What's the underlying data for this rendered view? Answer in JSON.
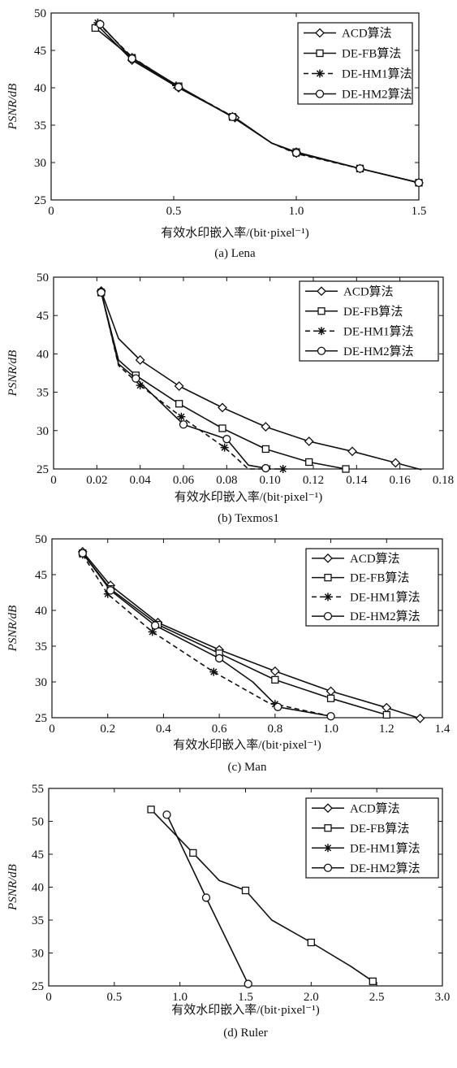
{
  "chart_data": [
    {
      "id": "a",
      "type": "line",
      "ylabel": "PSNR/dB",
      "xlabel": "有效水印嵌入率/(bit·pixel⁻¹)",
      "caption": "(a) Lena",
      "xlim": [
        0,
        1.5
      ],
      "ylim": [
        25,
        50
      ],
      "xticks": [
        "0",
        "0.5",
        "1.0",
        "1.5"
      ],
      "xtick_values": [
        0,
        0.5,
        1.0,
        1.5
      ],
      "yticks": [
        25,
        30,
        35,
        40,
        45,
        50
      ],
      "legend_position": "top-right",
      "series": [
        {
          "name": "ACD算法",
          "marker": "diamond",
          "dash": "solid",
          "x": [
            0.19,
            0.33,
            0.52,
            0.75,
            0.9,
            1.0,
            1.26,
            1.5
          ],
          "y": [
            48.3,
            43.7,
            40.0,
            36.0,
            32.6,
            31.4,
            29.2,
            27.3
          ],
          "marker_idx": [
            0,
            1,
            2,
            3,
            5,
            6,
            7
          ]
        },
        {
          "name": "DE-FB算法",
          "marker": "square",
          "dash": "solid",
          "x": [
            0.18,
            0.33,
            0.52,
            0.74,
            0.9,
            1.0,
            1.26,
            1.5
          ],
          "y": [
            48.0,
            44.0,
            40.2,
            36.1,
            32.6,
            31.4,
            29.2,
            27.3
          ],
          "marker_idx": [
            0,
            1,
            2,
            3,
            5,
            6,
            7
          ]
        },
        {
          "name": "DE-HM1算法",
          "marker": "asterisk",
          "dash": "dashed",
          "x": [
            0.19,
            0.33,
            0.51,
            0.74,
            0.9,
            1.0,
            1.26,
            1.5
          ],
          "y": [
            48.7,
            44.1,
            40.3,
            36.2,
            32.6,
            31.2,
            29.2,
            27.3
          ],
          "marker_idx": [
            0,
            1,
            2,
            3,
            5,
            6,
            7
          ]
        },
        {
          "name": "DE-HM2算法",
          "marker": "circle",
          "dash": "solid",
          "x": [
            0.2,
            0.33,
            0.52,
            0.74,
            0.9,
            1.0,
            1.26,
            1.5
          ],
          "y": [
            48.5,
            43.9,
            40.1,
            36.1,
            32.6,
            31.3,
            29.2,
            27.3
          ],
          "marker_idx": [
            0,
            1,
            2,
            3,
            5,
            6,
            7
          ]
        }
      ]
    },
    {
      "id": "b",
      "type": "line",
      "ylabel": "PSNR/dB",
      "xlabel": "有效水印嵌入率/(bit·pixel⁻¹)",
      "caption": "(b) Texmos1",
      "xlim": [
        0,
        0.18
      ],
      "ylim": [
        25,
        50
      ],
      "xticks": [
        "0",
        "0.02",
        "0.04",
        "0.06",
        "0.08",
        "0.10",
        "0.12",
        "0.14",
        "0.16",
        "0.18"
      ],
      "xtick_values": [
        0,
        0.02,
        0.04,
        0.06,
        0.08,
        0.1,
        0.12,
        0.14,
        0.16,
        0.18
      ],
      "yticks": [
        25,
        30,
        35,
        40,
        45,
        50
      ],
      "legend_position": "top-right",
      "series": [
        {
          "name": "ACD算法",
          "marker": "diamond",
          "dash": "solid",
          "x": [
            0.022,
            0.03,
            0.04,
            0.058,
            0.078,
            0.098,
            0.118,
            0.138,
            0.158,
            0.17
          ],
          "y": [
            48.2,
            42.0,
            39.2,
            35.8,
            33.0,
            30.5,
            28.6,
            27.3,
            25.8,
            24.9
          ],
          "marker_idx": [
            0,
            2,
            3,
            4,
            5,
            6,
            7,
            8
          ]
        },
        {
          "name": "DE-FB算法",
          "marker": "square",
          "dash": "solid",
          "x": [
            0.022,
            0.03,
            0.038,
            0.058,
            0.078,
            0.098,
            0.118,
            0.135
          ],
          "y": [
            48.0,
            39.2,
            37.2,
            33.5,
            30.3,
            27.6,
            25.9,
            25.0
          ],
          "marker_idx": [
            0,
            2,
            3,
            4,
            5,
            6,
            7
          ]
        },
        {
          "name": "DE-HM1算法",
          "marker": "asterisk",
          "dash": "dashed",
          "x": [
            0.022,
            0.03,
            0.04,
            0.059,
            0.079,
            0.09,
            0.106
          ],
          "y": [
            48.1,
            38.5,
            35.9,
            31.8,
            27.8,
            25.0,
            25.0
          ],
          "marker_idx": [
            0,
            2,
            3,
            4,
            6
          ]
        },
        {
          "name": "DE-HM2算法",
          "marker": "circle",
          "dash": "solid",
          "x": [
            0.022,
            0.03,
            0.038,
            0.06,
            0.08,
            0.09,
            0.098
          ],
          "y": [
            48.0,
            38.7,
            36.8,
            30.8,
            28.9,
            25.5,
            25.1
          ],
          "marker_idx": [
            0,
            2,
            3,
            4,
            6
          ]
        }
      ]
    },
    {
      "id": "c",
      "type": "line",
      "ylabel": "PSNR/dB",
      "xlabel": "有效水印嵌入率/(bit·pixel⁻¹)",
      "caption": "(c) Man",
      "xlim": [
        0,
        1.4
      ],
      "ylim": [
        25,
        50
      ],
      "xticks": [
        "0",
        "0.2",
        "0.4",
        "0.6",
        "0.8",
        "1.0",
        "1.2",
        "1.4"
      ],
      "xtick_values": [
        0,
        0.2,
        0.4,
        0.6,
        0.8,
        1.0,
        1.2,
        1.4
      ],
      "yticks": [
        25,
        30,
        35,
        40,
        45,
        50
      ],
      "legend_position": "top-right",
      "series": [
        {
          "name": "ACD算法",
          "marker": "diamond",
          "dash": "solid",
          "x": [
            0.11,
            0.21,
            0.38,
            0.6,
            0.8,
            1.0,
            1.2,
            1.32
          ],
          "y": [
            48.2,
            43.5,
            38.3,
            34.5,
            31.5,
            28.7,
            26.4,
            24.9
          ],
          "marker_idx": [
            0,
            1,
            2,
            3,
            4,
            5,
            6,
            7
          ]
        },
        {
          "name": "DE-FB算法",
          "marker": "square",
          "dash": "solid",
          "x": [
            0.11,
            0.21,
            0.38,
            0.6,
            0.8,
            1.0,
            1.2
          ],
          "y": [
            48.0,
            43.0,
            38.0,
            34.0,
            30.3,
            27.7,
            25.4
          ],
          "marker_idx": [
            0,
            1,
            2,
            3,
            4,
            5,
            6
          ]
        },
        {
          "name": "DE-HM1算法",
          "marker": "asterisk",
          "dash": "dashed",
          "x": [
            0.11,
            0.2,
            0.36,
            0.58,
            0.78,
            0.8,
            1.0
          ],
          "y": [
            47.8,
            42.3,
            37.0,
            31.4,
            27.0,
            26.9,
            25.2
          ],
          "marker_idx": [
            0,
            1,
            2,
            3,
            5,
            6
          ]
        },
        {
          "name": "DE-HM2算法",
          "marker": "circle",
          "dash": "solid",
          "x": [
            0.11,
            0.21,
            0.37,
            0.6,
            0.72,
            0.81,
            1.0
          ],
          "y": [
            48.0,
            42.8,
            37.9,
            33.3,
            30.0,
            26.5,
            25.2
          ],
          "marker_idx": [
            0,
            1,
            2,
            3,
            5,
            6
          ]
        }
      ]
    },
    {
      "id": "d",
      "type": "line",
      "ylabel": "PSNR/dB",
      "xlabel": "有效水印嵌入率/(bit·pixel⁻¹)",
      "caption": "(d) Ruler",
      "xlim": [
        0,
        3.0
      ],
      "ylim": [
        25,
        55
      ],
      "xticks": [
        "0",
        "0.5",
        "1.0",
        "1.5",
        "2.0",
        "2.5",
        "3.0"
      ],
      "xtick_values": [
        0,
        0.5,
        1.0,
        1.5,
        2.0,
        2.5,
        3.0
      ],
      "yticks": [
        25,
        30,
        35,
        40,
        45,
        50,
        55
      ],
      "legend_position": "top-right",
      "series": [
        {
          "name": "ACD算法",
          "marker": "diamond",
          "dash": "solid",
          "x": [],
          "y": [],
          "marker_idx": []
        },
        {
          "name": "DE-FB算法",
          "marker": "square",
          "dash": "solid",
          "x": [
            0.78,
            1.1,
            1.3,
            1.5,
            1.7,
            2.0,
            2.3,
            2.47
          ],
          "y": [
            51.8,
            45.2,
            41.0,
            39.5,
            35.0,
            31.6,
            28.0,
            25.7
          ],
          "marker_idx": [
            0,
            1,
            3,
            5,
            7
          ]
        },
        {
          "name": "DE-HM1算法",
          "marker": "asterisk",
          "dash": "solid",
          "x": [],
          "y": [],
          "marker_idx": []
        },
        {
          "name": "DE-HM2算法",
          "marker": "circle",
          "dash": "solid",
          "x": [
            0.9,
            1.2,
            1.52
          ],
          "y": [
            51.0,
            38.4,
            25.3
          ],
          "marker_idx": [
            0,
            1,
            2
          ]
        }
      ]
    }
  ]
}
